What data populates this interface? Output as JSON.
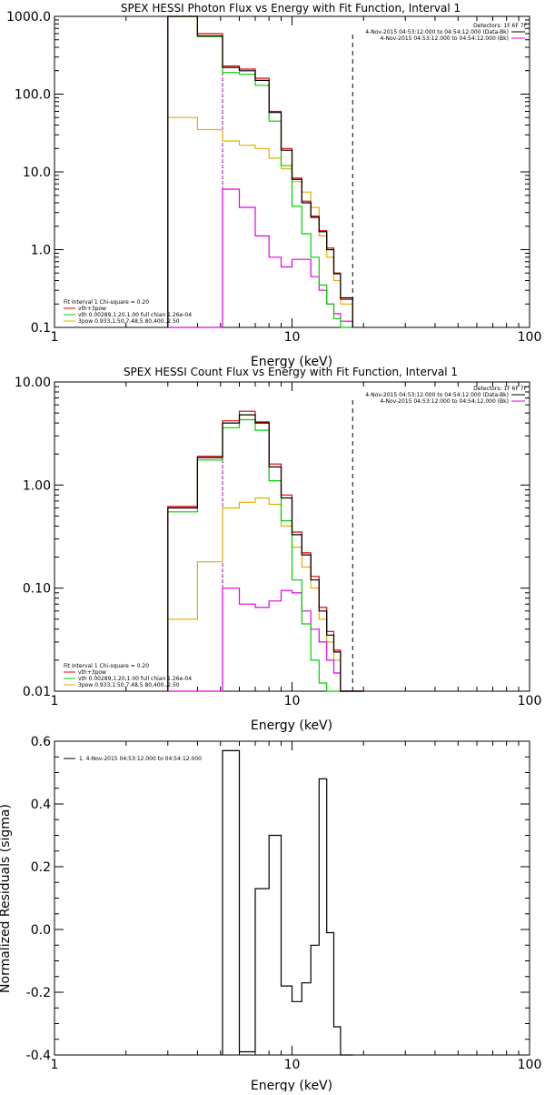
{
  "colors": {
    "total": "#e00000",
    "vth": "#00d000",
    "spow": "#e0b000",
    "spowPink": "#e000e0",
    "residual": "#000000",
    "background": "#ffffff"
  },
  "chart_data": [
    {
      "type": "line",
      "title": "SPEX HESSI Photon Flux vs Energy with Fit Function, Interval 1",
      "xlabel": "Energy (keV)",
      "ylabel": "",
      "xscale": "log",
      "yscale": "log",
      "xlim": [
        1,
        100
      ],
      "ylim": [
        0.1,
        1000
      ],
      "xticks": [
        "1",
        "10",
        "100"
      ],
      "yticks": [
        "0.1",
        "1.0",
        "10.0",
        "100.0",
        "1000.0"
      ],
      "info_top": [
        "Detectors: 1F 6F 7F",
        "4-Nov-2015 04:53:12.000 to 04:54:12.000 (Data-Bk)",
        "4-Nov-2015 04:53:12.000 to 04:54:12.000 (Bk)"
      ],
      "legend": [
        "Fit Interval 1    Chi-square = 0.20",
        "vth+3pow",
        "vth 0.00289,1.20,1.00  full chian 1.26e-04",
        "3pow 0.933,1.50,7.48,5.80,400.,2.50"
      ],
      "vlines": {
        "dotted": 5.1,
        "dashed": 18.0
      },
      "edges": [
        3.0,
        4.0,
        5.1,
        6.0,
        7.0,
        8.0,
        9.0,
        10.0,
        11.0,
        12.0,
        13.0,
        14.0,
        15.0,
        16.0,
        18.0
      ],
      "series": [
        {
          "key": "data",
          "colorKey": "residual",
          "values": [
            1000,
            560,
            220,
            200,
            150,
            58,
            19,
            8.0,
            4.0,
            2.6,
            1.7,
            1.0,
            0.49,
            0.24
          ]
        },
        {
          "key": "total",
          "colorKey": "total",
          "values": [
            1000,
            600,
            230,
            210,
            160,
            60,
            20,
            8.3,
            4.2,
            2.7,
            1.75,
            1.05,
            0.5,
            0.23
          ]
        },
        {
          "key": "vth",
          "colorKey": "vth",
          "values": [
            1000,
            550,
            190,
            180,
            130,
            45,
            12,
            3.6,
            1.6,
            0.8,
            0.35,
            0.2,
            0.13,
            0.1
          ]
        },
        {
          "key": "spow",
          "colorKey": "spow",
          "values": [
            50,
            35,
            25,
            22,
            20,
            15,
            11,
            7.5,
            5.5,
            3.5,
            1.5,
            0.8,
            0.4,
            0.2
          ]
        },
        {
          "key": "spowPink",
          "colorKey": "spowPink",
          "values": [
            0.1,
            0.1,
            6.0,
            3.5,
            1.5,
            0.8,
            0.6,
            0.75,
            0.75,
            0.45,
            0.3,
            0.2,
            0.15,
            0.12
          ]
        }
      ]
    },
    {
      "type": "line",
      "title": "SPEX HESSI Count Flux vs Energy with Fit Function, Interval 1",
      "xlabel": "Energy (keV)",
      "ylabel": "",
      "xscale": "log",
      "yscale": "log",
      "xlim": [
        1,
        100
      ],
      "ylim": [
        0.01,
        10
      ],
      "xticks": [
        "1",
        "10",
        "100"
      ],
      "yticks": [
        "0.01",
        "0.10",
        "1.00",
        "10.00"
      ],
      "info_top": [
        "Detectors: 1F 6F 7F",
        "4-Nov-2015 04:53:12.000 to 04:54:12.000 (Data-Bk)",
        "4-Nov-2015 04:53:12.000 to 04:54:12.000 (Bk)"
      ],
      "legend": [
        "Fit Interval 1    Chi-square = 0.20",
        "vth+3pow",
        "vth 0.00289,1.20,1.00  full chian 1.26e-04",
        "3pow 0.933,1.50,7.48,5.80,400.,2.50"
      ],
      "vlines": {
        "dotted": 5.1,
        "dashed": 18.0
      },
      "edges": [
        3.0,
        4.0,
        5.1,
        6.0,
        7.0,
        8.0,
        9.0,
        10.0,
        11.0,
        12.0,
        13.0,
        14.0,
        15.0,
        16.0,
        18.0,
        20.0
      ],
      "series": [
        {
          "key": "data",
          "colorKey": "residual",
          "values": [
            0.6,
            1.85,
            4.0,
            4.8,
            4.0,
            1.5,
            0.75,
            0.33,
            0.21,
            0.12,
            0.06,
            0.035,
            0.024,
            0.01,
            0.01
          ]
        },
        {
          "key": "total",
          "colorKey": "total",
          "values": [
            0.62,
            1.9,
            4.2,
            5.2,
            4.1,
            1.6,
            0.8,
            0.35,
            0.22,
            0.13,
            0.065,
            0.038,
            0.025,
            0.01,
            0.01
          ]
        },
        {
          "key": "vth",
          "colorKey": "vth",
          "values": [
            0.55,
            1.75,
            3.6,
            4.3,
            3.4,
            1.1,
            0.45,
            0.12,
            0.045,
            0.02,
            0.012,
            0.01,
            0.01,
            0.01,
            0.01
          ]
        },
        {
          "key": "spow",
          "colorKey": "spow",
          "values": [
            0.05,
            0.18,
            0.6,
            0.68,
            0.75,
            0.65,
            0.4,
            0.25,
            0.16,
            0.1,
            0.05,
            0.03,
            0.02,
            0.01,
            0.01
          ]
        },
        {
          "key": "spowPink",
          "colorKey": "spowPink",
          "values": [
            0.01,
            0.01,
            0.1,
            0.07,
            0.065,
            0.075,
            0.095,
            0.09,
            0.06,
            0.04,
            0.03,
            0.02,
            0.015,
            0.01,
            0.01
          ]
        }
      ]
    },
    {
      "type": "line",
      "title": "",
      "xlabel": "Energy (keV)",
      "ylabel": "Normalized Residuals (sigma)",
      "xscale": "log",
      "yscale": "linear",
      "xlim": [
        1,
        100
      ],
      "ylim": [
        -0.4,
        0.6
      ],
      "xticks": [
        "1",
        "10",
        "100"
      ],
      "yticks": [
        "-0.4",
        "-0.2",
        "0.0",
        "0.2",
        "0.4",
        "0.6"
      ],
      "legend": [
        "1.  4-Nov-2015 04:53:12.000 to 04:54:12.000"
      ],
      "edges": [
        5.1,
        6.0,
        7.0,
        8.0,
        9.0,
        10.0,
        11.0,
        12.0,
        13.0,
        14.0,
        15.0,
        16.0,
        18.0
      ],
      "series": [
        {
          "key": "residual",
          "colorKey": "residual",
          "values": [
            0.57,
            -0.39,
            0.13,
            0.3,
            -0.18,
            -0.23,
            -0.17,
            -0.05,
            0.48,
            -0.01,
            -0.31,
            -0.4
          ]
        }
      ]
    }
  ]
}
